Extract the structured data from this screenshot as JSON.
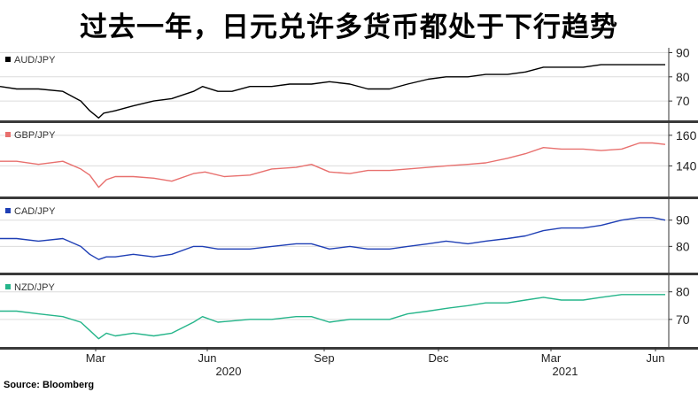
{
  "title": "过去一年，日元兑许多货币都处于下行趋势",
  "source": "Source: Bloomberg",
  "chart_data": {
    "type": "line",
    "x_tick_labels": [
      "Mar",
      "Jun",
      "Sep",
      "Dec",
      "Mar",
      "Jun"
    ],
    "x_year_labels": [
      "2020",
      "2021"
    ],
    "x_range": [
      "2020-01-02",
      "2021-06-04"
    ],
    "panels": [
      {
        "label": "AUD/JPY",
        "color": "#000000",
        "ylim": [
          62,
          92
        ],
        "yticks": [
          70,
          80,
          90
        ],
        "x": [
          "2020-01-02",
          "2020-01-15",
          "2020-02-01",
          "2020-02-20",
          "2020-03-05",
          "2020-03-12",
          "2020-03-19",
          "2020-03-23",
          "2020-04-01",
          "2020-04-15",
          "2020-05-01",
          "2020-05-15",
          "2020-06-01",
          "2020-06-08",
          "2020-06-20",
          "2020-07-01",
          "2020-07-15",
          "2020-08-01",
          "2020-08-15",
          "2020-09-01",
          "2020-09-15",
          "2020-10-01",
          "2020-10-15",
          "2020-11-01",
          "2020-11-15",
          "2020-12-01",
          "2020-12-15",
          "2021-01-01",
          "2021-01-15",
          "2021-02-01",
          "2021-02-15",
          "2021-03-01",
          "2021-03-15",
          "2021-04-01",
          "2021-04-15",
          "2021-05-01",
          "2021-05-15",
          "2021-06-04"
        ],
        "y": [
          76,
          75,
          75,
          74,
          70,
          66,
          63,
          65,
          66,
          68,
          70,
          71,
          74,
          76,
          74,
          74,
          76,
          76,
          77,
          77,
          78,
          77,
          75,
          75,
          77,
          79,
          80,
          80,
          81,
          81,
          82,
          84,
          84,
          84,
          85,
          85,
          85,
          85
        ]
      },
      {
        "label": "GBP/JPY",
        "color": "#e8706e",
        "ylim": [
          120,
          168
        ],
        "yticks": [
          140,
          160
        ],
        "x": [
          "2020-01-02",
          "2020-01-15",
          "2020-02-01",
          "2020-02-20",
          "2020-03-05",
          "2020-03-12",
          "2020-03-19",
          "2020-03-25",
          "2020-04-01",
          "2020-04-15",
          "2020-05-01",
          "2020-05-15",
          "2020-06-01",
          "2020-06-10",
          "2020-06-25",
          "2020-07-15",
          "2020-08-01",
          "2020-08-20",
          "2020-09-01",
          "2020-09-15",
          "2020-10-01",
          "2020-10-15",
          "2020-11-01",
          "2020-11-15",
          "2020-12-01",
          "2020-12-15",
          "2021-01-01",
          "2021-01-15",
          "2021-02-01",
          "2021-02-15",
          "2021-03-01",
          "2021-03-15",
          "2021-04-01",
          "2021-04-15",
          "2021-05-01",
          "2021-05-15",
          "2021-05-25",
          "2021-06-04"
        ],
        "y": [
          143,
          143,
          141,
          143,
          138,
          134,
          126,
          131,
          133,
          133,
          132,
          130,
          135,
          136,
          133,
          134,
          138,
          139,
          141,
          136,
          135,
          137,
          137,
          138,
          139,
          140,
          141,
          142,
          145,
          148,
          152,
          151,
          151,
          150,
          151,
          155,
          155,
          154
        ]
      },
      {
        "label": "CAD/JPY",
        "color": "#1f3fb5",
        "ylim": [
          70,
          98
        ],
        "yticks": [
          80,
          90
        ],
        "x": [
          "2020-01-02",
          "2020-01-15",
          "2020-02-01",
          "2020-02-20",
          "2020-03-05",
          "2020-03-12",
          "2020-03-19",
          "2020-03-25",
          "2020-04-01",
          "2020-04-15",
          "2020-05-01",
          "2020-05-15",
          "2020-06-01",
          "2020-06-08",
          "2020-06-20",
          "2020-07-15",
          "2020-08-01",
          "2020-08-20",
          "2020-09-01",
          "2020-09-15",
          "2020-10-01",
          "2020-10-15",
          "2020-11-01",
          "2020-11-15",
          "2020-12-01",
          "2020-12-15",
          "2021-01-01",
          "2021-01-15",
          "2021-02-01",
          "2021-02-15",
          "2021-03-01",
          "2021-03-15",
          "2021-04-01",
          "2021-04-15",
          "2021-05-01",
          "2021-05-15",
          "2021-05-25",
          "2021-06-04"
        ],
        "y": [
          83,
          83,
          82,
          83,
          80,
          77,
          75,
          76,
          76,
          77,
          76,
          77,
          80,
          80,
          79,
          79,
          80,
          81,
          81,
          79,
          80,
          79,
          79,
          80,
          81,
          82,
          81,
          82,
          83,
          84,
          86,
          87,
          87,
          88,
          90,
          91,
          91,
          90
        ]
      },
      {
        "label": "NZD/JPY",
        "color": "#25b58a",
        "ylim": [
          60,
          86
        ],
        "yticks": [
          70,
          80
        ],
        "x": [
          "2020-01-02",
          "2020-01-15",
          "2020-02-01",
          "2020-02-20",
          "2020-03-05",
          "2020-03-12",
          "2020-03-19",
          "2020-03-25",
          "2020-04-01",
          "2020-04-15",
          "2020-05-01",
          "2020-05-15",
          "2020-06-01",
          "2020-06-08",
          "2020-06-20",
          "2020-07-15",
          "2020-08-01",
          "2020-08-20",
          "2020-09-01",
          "2020-09-15",
          "2020-10-01",
          "2020-10-15",
          "2020-11-01",
          "2020-11-15",
          "2020-12-01",
          "2020-12-15",
          "2021-01-01",
          "2021-01-15",
          "2021-02-01",
          "2021-02-15",
          "2021-03-01",
          "2021-03-15",
          "2021-04-01",
          "2021-04-15",
          "2021-05-01",
          "2021-05-15",
          "2021-05-25",
          "2021-06-04"
        ],
        "y": [
          73,
          73,
          72,
          71,
          69,
          66,
          63,
          65,
          64,
          65,
          64,
          65,
          69,
          71,
          69,
          70,
          70,
          71,
          71,
          69,
          70,
          70,
          70,
          72,
          73,
          74,
          75,
          76,
          76,
          77,
          78,
          77,
          77,
          78,
          79,
          79,
          79,
          79
        ]
      }
    ]
  }
}
